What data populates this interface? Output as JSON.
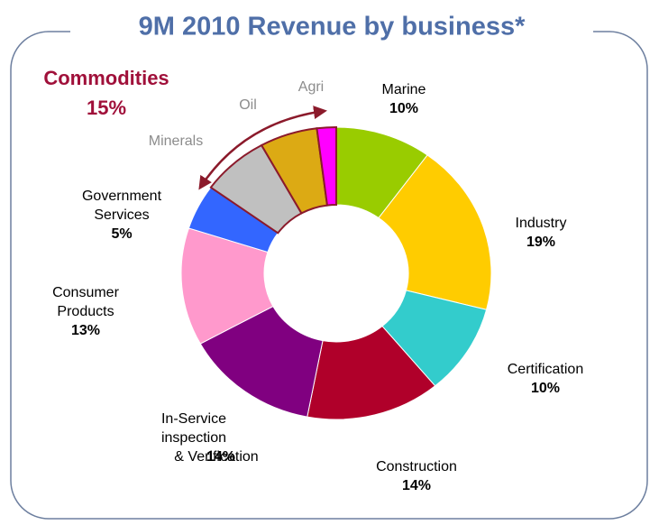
{
  "chart_data": {
    "type": "donut",
    "title": "9M 2010 Revenue by business*",
    "categories": [
      [
        "Marine"
      ],
      [
        "Industry"
      ],
      [
        "Certification"
      ],
      [
        "Construction"
      ],
      [
        "In-Service",
        "inspection",
        "& Verification"
      ],
      [
        "Consumer",
        "Products"
      ],
      [
        "Government",
        "Services"
      ],
      [
        "Minerals"
      ],
      [
        "Oil"
      ],
      [
        "Agri"
      ]
    ],
    "values": [
      10,
      19,
      10,
      14,
      14,
      13,
      5,
      7,
      6,
      2
    ],
    "value_labels": [
      "10%",
      "19%",
      "10%",
      "14%",
      "14%",
      "13%",
      "5%",
      null,
      null,
      null
    ],
    "colors": [
      "#99cc00",
      "#ffcc00",
      "#33cccc",
      "#b0002a",
      "#800080",
      "#ff99cc",
      "#3366ff",
      "#c0c0c0",
      "#dcaa14",
      "#ff00ff"
    ],
    "edgecolors": [
      "#ffffff",
      "#ffffff",
      "#ffffff",
      "#ffffff",
      "#ffffff",
      "#ffffff",
      "#ffffff",
      "#8b1a2b",
      "#8b1a2b",
      "#8b1a2b"
    ],
    "annotation": {
      "text": "Commodities",
      "label": "15%"
    }
  }
}
